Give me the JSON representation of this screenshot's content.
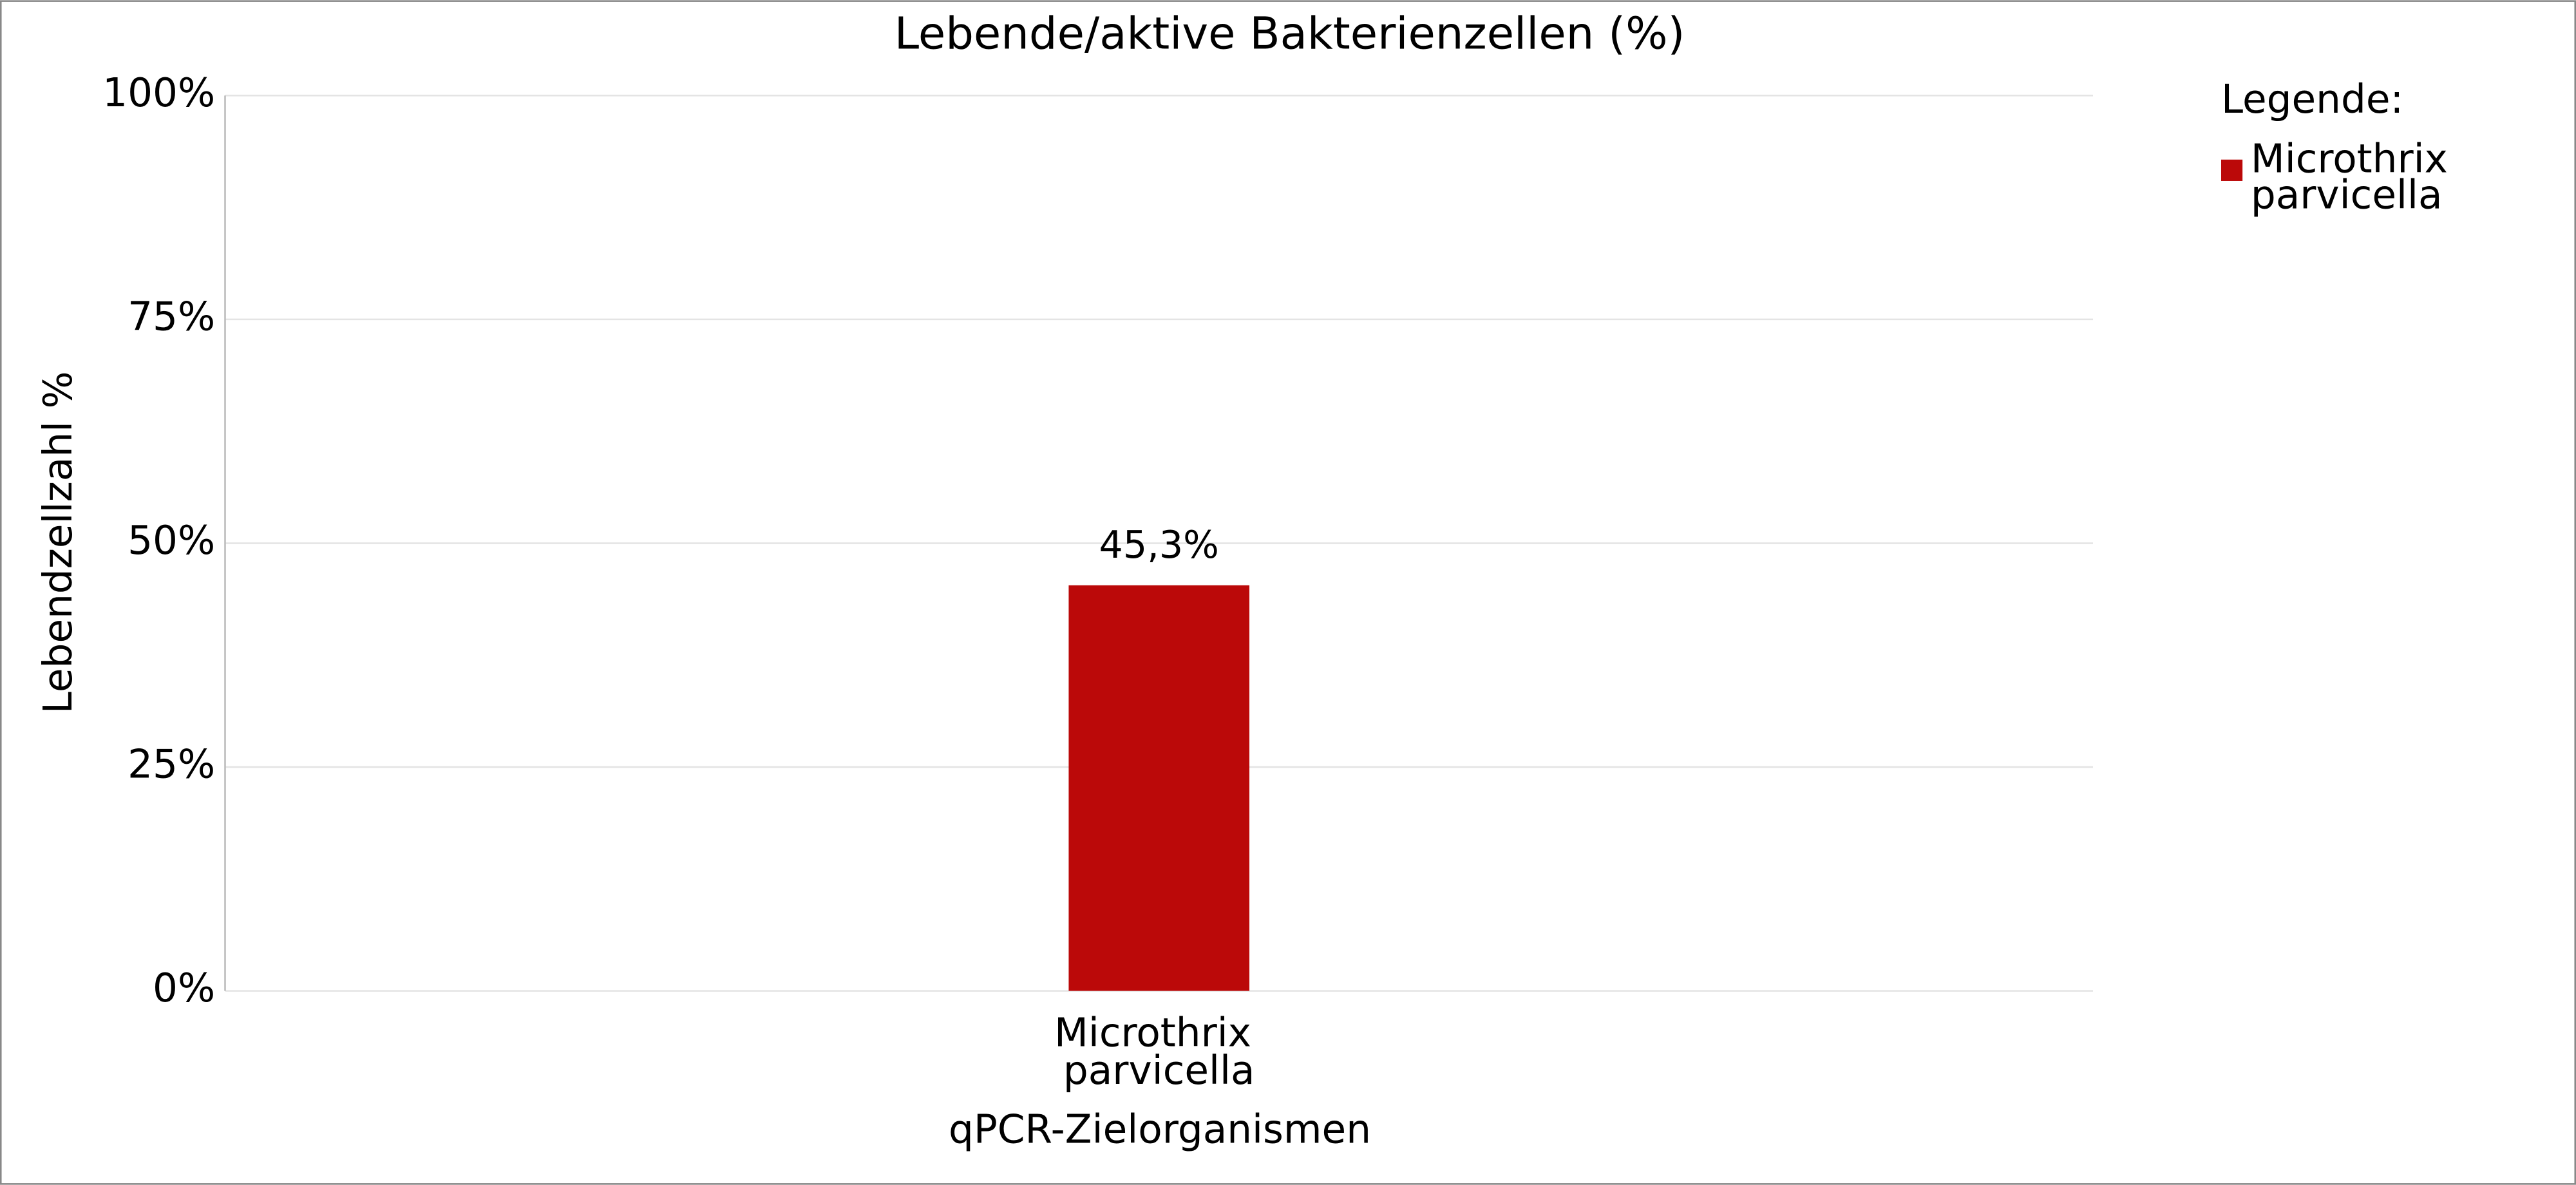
{
  "chart_data": {
    "type": "bar",
    "title": "Lebende/aktive Bakterienzellen (%)",
    "x_label": "qPCR-Zielorganismen",
    "y_label": "Lebendzellzahl %",
    "legend_title": "Legende:",
    "legend_position": "right",
    "categories": [
      "Microthrix parvicella"
    ],
    "series": [
      {
        "name": "Microthrix parvicella",
        "color": "#bb0909",
        "values": [
          45.3
        ],
        "value_labels": [
          "45,3%"
        ]
      }
    ],
    "ylim": [
      0,
      100
    ],
    "yticks": [
      {
        "value": 0,
        "label": "0%"
      },
      {
        "value": 25,
        "label": "25%"
      },
      {
        "value": 50,
        "label": "50%"
      },
      {
        "value": 75,
        "label": "75%"
      },
      {
        "value": 100,
        "label": "100%"
      }
    ],
    "grid": true
  }
}
